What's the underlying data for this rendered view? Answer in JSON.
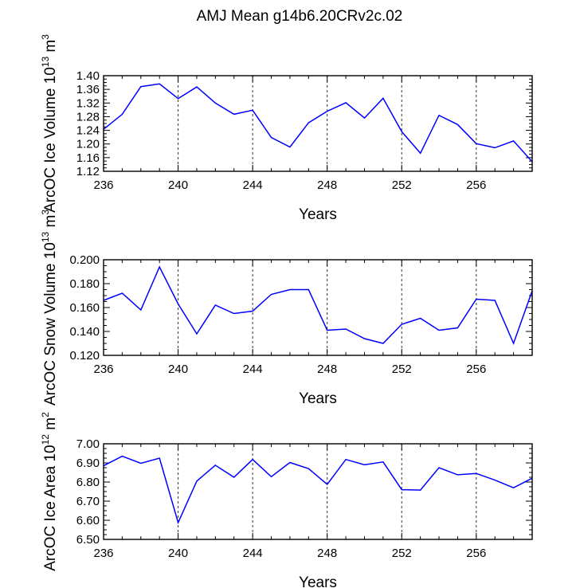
{
  "title": "AMJ Mean g14b6.20CRv2c.02",
  "chart_data": [
    {
      "type": "line",
      "ylabel": {
        "text": "ArcOC Ice Volume 10",
        "exp": "13",
        "unit": "m",
        "unit_exp": "3"
      },
      "xlabel": "Years",
      "xlim": [
        236,
        259
      ],
      "xticks": [
        "236",
        "240",
        "244",
        "248",
        "252",
        "256"
      ],
      "ylim": [
        1.12,
        1.4
      ],
      "yticks": [
        "1.12",
        "1.16",
        "1.20",
        "1.24",
        "1.28",
        "1.32",
        "1.36",
        "1.40"
      ],
      "x": [
        236,
        237,
        238,
        239,
        240,
        241,
        242,
        243,
        244,
        245,
        246,
        247,
        248,
        249,
        250,
        251,
        252,
        253,
        254,
        255,
        256,
        257,
        258,
        259
      ],
      "series": [
        {
          "name": "ArcOC Ice Volume",
          "color": "#0000ff",
          "values": [
            1.243,
            1.287,
            1.368,
            1.376,
            1.333,
            1.367,
            1.32,
            1.287,
            1.299,
            1.219,
            1.191,
            1.262,
            1.296,
            1.321,
            1.276,
            1.334,
            1.236,
            1.173,
            1.284,
            1.257,
            1.201,
            1.189,
            1.209,
            1.148
          ]
        }
      ]
    },
    {
      "type": "line",
      "ylabel": {
        "text": "ArcOC Snow Volume 10",
        "exp": "13",
        "unit": "m",
        "unit_exp": "3"
      },
      "xlabel": "Years",
      "xlim": [
        236,
        259
      ],
      "xticks": [
        "236",
        "240",
        "244",
        "248",
        "252",
        "256"
      ],
      "ylim": [
        0.12,
        0.2
      ],
      "yticks": [
        "0.120",
        "0.140",
        "0.160",
        "0.180",
        "0.200"
      ],
      "x": [
        236,
        237,
        238,
        239,
        240,
        241,
        242,
        243,
        244,
        245,
        246,
        247,
        248,
        249,
        250,
        251,
        252,
        253,
        254,
        255,
        256,
        257,
        258,
        259
      ],
      "series": [
        {
          "name": "ArcOC Snow Volume",
          "color": "#0000ff",
          "values": [
            0.166,
            0.172,
            0.158,
            0.194,
            0.163,
            0.138,
            0.162,
            0.155,
            0.157,
            0.171,
            0.175,
            0.175,
            0.141,
            0.142,
            0.134,
            0.13,
            0.146,
            0.151,
            0.141,
            0.143,
            0.167,
            0.166,
            0.13,
            0.174
          ]
        }
      ]
    },
    {
      "type": "line",
      "ylabel": {
        "text": "ArcOC Ice Area 10",
        "exp": "12",
        "unit": "m",
        "unit_exp": "2"
      },
      "xlabel": "Years",
      "xlim": [
        236,
        259
      ],
      "xticks": [
        "236",
        "240",
        "244",
        "248",
        "252",
        "256"
      ],
      "ylim": [
        6.5,
        7.0
      ],
      "yticks": [
        "6.50",
        "6.60",
        "6.70",
        "6.80",
        "6.90",
        "7.00"
      ],
      "x": [
        236,
        237,
        238,
        239,
        240,
        241,
        242,
        243,
        244,
        245,
        246,
        247,
        248,
        249,
        250,
        251,
        252,
        253,
        254,
        255,
        256,
        257,
        258,
        259
      ],
      "series": [
        {
          "name": "ArcOC Ice Area",
          "color": "#0000ff",
          "values": [
            6.885,
            6.935,
            6.898,
            6.925,
            6.588,
            6.805,
            6.888,
            6.825,
            6.918,
            6.828,
            6.902,
            6.87,
            6.788,
            6.918,
            6.89,
            6.905,
            6.76,
            6.758,
            6.875,
            6.838,
            6.845,
            6.81,
            6.77,
            6.82
          ]
        }
      ]
    }
  ]
}
